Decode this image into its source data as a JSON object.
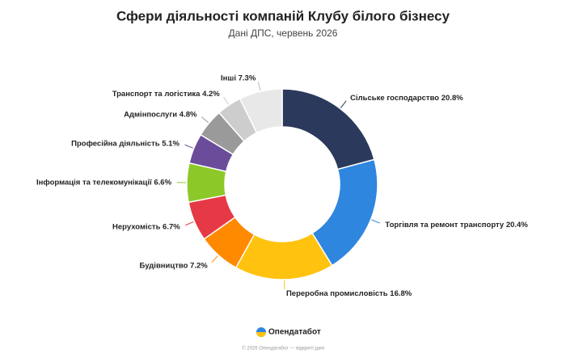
{
  "chart_data": {
    "type": "donut",
    "title": "Сфери діяльності компаній Клубу білого бізнесу",
    "subtitle": "Дані ДПС, червень 2026",
    "categories": [
      "Сільське господарство",
      "Торгівля та ремонт транспорту",
      "Переробна промисловість",
      "Будівництво",
      "Нерухомість",
      "Інформація та телекомунікації",
      "Професійна діяльність",
      "Адмінпослуги",
      "Транспорт та логістика",
      "Інші"
    ],
    "values": [
      20.8,
      20.4,
      16.8,
      7.2,
      6.7,
      6.6,
      5.1,
      4.8,
      4.2,
      7.3
    ],
    "value_labels": [
      "20.8%",
      "20.4%",
      "16.8%",
      "7.2%",
      "6.7%",
      "6.6%",
      "5.1%",
      "4.8%",
      "4.2%",
      "7.3%"
    ],
    "colors": [
      "#2b3a5c",
      "#2e86de",
      "#ffc20e",
      "#ff8a00",
      "#e63946",
      "#8cc928",
      "#6b4c9a",
      "#9a9a9a",
      "#cdcdcd",
      "#e8e8e8"
    ]
  },
  "brand": "Опендатабот",
  "footer": "© 2026 Опендатабот — відкриті дані"
}
